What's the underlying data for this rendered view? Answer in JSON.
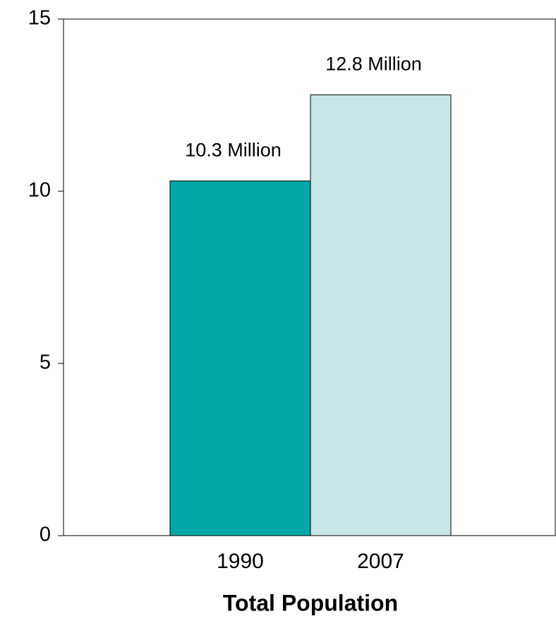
{
  "chart_data": {
    "type": "bar",
    "categories": [
      "1990",
      "2007"
    ],
    "values": [
      10.3,
      12.8
    ],
    "value_labels": [
      "10.3 Million",
      "12.8 Million"
    ],
    "colors": [
      "#00a8a8",
      "#c8e6e8"
    ],
    "x_label": "Total Population",
    "ylim": [
      0,
      15
    ],
    "yticks": [
      0,
      5,
      10,
      15
    ],
    "grid": false
  }
}
